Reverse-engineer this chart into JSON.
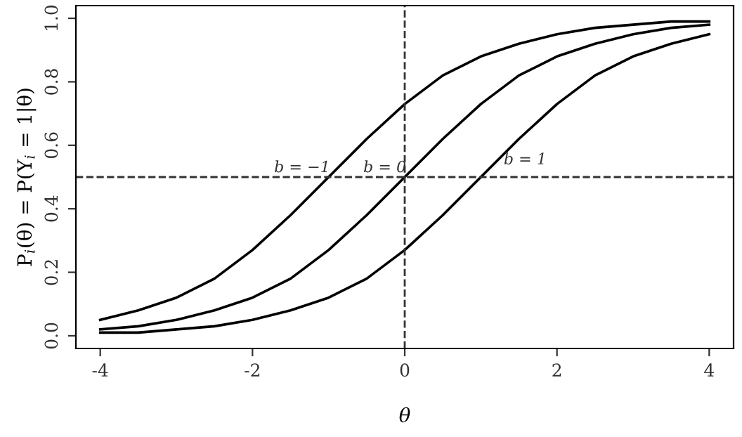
{
  "chart_data": {
    "type": "line",
    "xlabel": "θ",
    "ylabel": "P$_{i}$(θ) = P(Y$_{i}$ = 1|θ)",
    "x": [
      -4,
      -3.5,
      -3,
      -2.5,
      -2,
      -1.5,
      -1,
      -0.5,
      0,
      0.5,
      1,
      1.5,
      2,
      2.5,
      3,
      3.5,
      4
    ],
    "series": [
      {
        "name": "b = −1",
        "color": "#000000",
        "values": [
          0.05,
          0.08,
          0.12,
          0.18,
          0.27,
          0.38,
          0.5,
          0.62,
          0.73,
          0.82,
          0.88,
          0.92,
          0.95,
          0.97,
          0.98,
          0.99,
          0.99
        ]
      },
      {
        "name": "b = 0",
        "color": "#000000",
        "values": [
          0.02,
          0.03,
          0.05,
          0.08,
          0.12,
          0.18,
          0.27,
          0.38,
          0.5,
          0.62,
          0.73,
          0.82,
          0.88,
          0.92,
          0.95,
          0.97,
          0.98
        ]
      },
      {
        "name": "b = 1",
        "color": "#000000",
        "values": [
          0.01,
          0.01,
          0.02,
          0.03,
          0.05,
          0.08,
          0.12,
          0.18,
          0.27,
          0.38,
          0.5,
          0.62,
          0.73,
          0.82,
          0.88,
          0.92,
          0.95
        ]
      }
    ],
    "xlim": [
      -4.32,
      4.32
    ],
    "ylim": [
      -0.04,
      1.04
    ],
    "xticks": [
      -4,
      -2,
      0,
      2,
      4
    ],
    "yticks": [
      {
        "value": 0,
        "label": "0.0"
      },
      {
        "value": 0.2,
        "label": "0.2"
      },
      {
        "value": 0.4,
        "label": "0.4"
      },
      {
        "value": 0.6,
        "label": "0.6"
      },
      {
        "value": 0.8,
        "label": "0.8"
      },
      {
        "value": 1,
        "label": "1.0"
      }
    ],
    "ref_lines": [
      {
        "axis": "x",
        "value": 0,
        "color": "#333333",
        "line_style": "dashed"
      },
      {
        "axis": "y",
        "value": 0.5,
        "color": "#333333",
        "line_style": "dashed"
      }
    ],
    "grid": false,
    "legend": false,
    "marker": "none",
    "line_style": "solid"
  }
}
